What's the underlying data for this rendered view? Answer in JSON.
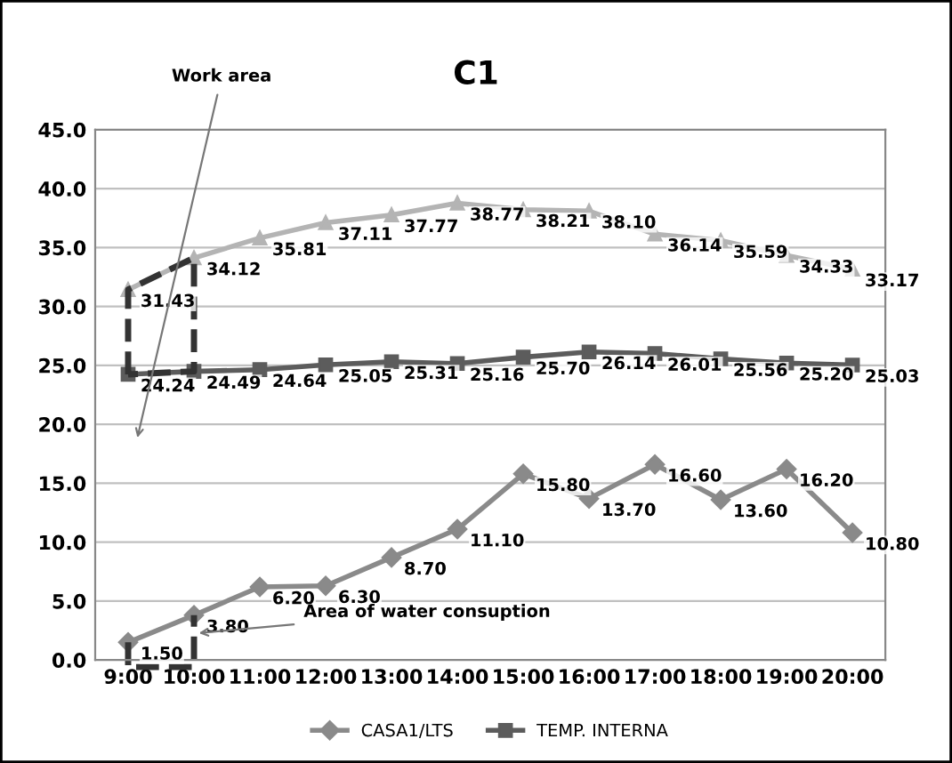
{
  "chart_data": {
    "type": "line",
    "title": "C1",
    "categories": [
      "9:00",
      "10:00",
      "11:00",
      "12:00",
      "13:00",
      "14:00",
      "15:00",
      "16:00",
      "17:00",
      "18:00",
      "19:00",
      "20:00"
    ],
    "series": [
      {
        "color": "#b4b4b4",
        "marker": "triangle",
        "values": [
          31.43,
          34.12,
          35.81,
          37.11,
          37.77,
          38.77,
          38.21,
          38.1,
          36.14,
          35.59,
          34.33,
          33.17
        ],
        "value_labels": [
          "31.43",
          "34.12",
          "35.81",
          "37.11",
          "37.77",
          "38.77",
          "38.21",
          "38.10",
          "36.14",
          "35.59",
          "34.33",
          "33.17"
        ]
      },
      {
        "name": "CASA1/LTS",
        "color": "#8a8a8a",
        "marker": "diamond",
        "values": [
          1.5,
          3.8,
          6.2,
          6.3,
          8.7,
          11.1,
          15.8,
          13.7,
          16.6,
          13.6,
          16.2,
          10.8
        ],
        "value_labels": [
          "1.50",
          "3.80",
          "6.20",
          "6.30",
          "8.70",
          "11.10",
          "15.80",
          "13.70",
          "16.60",
          "13.60",
          "16.20",
          "10.80"
        ]
      },
      {
        "name": "TEMP. INTERNA",
        "color": "#5c5c5c",
        "marker": "square",
        "values": [
          24.24,
          24.49,
          24.64,
          25.05,
          25.31,
          25.16,
          25.7,
          26.14,
          26.01,
          25.56,
          25.2,
          25.03
        ],
        "value_labels": [
          "24.24",
          "24.49",
          "24.64",
          "25.05",
          "25.31",
          "25.16",
          "25.70",
          "26.14",
          "26.01",
          "25.56",
          "25.20",
          "25.03"
        ]
      }
    ],
    "ylim": [
      0,
      45
    ],
    "yticks": [
      {
        "value": 0,
        "label": "0.0"
      },
      {
        "value": 5,
        "label": "5.0"
      },
      {
        "value": 10,
        "label": "10.0"
      },
      {
        "value": 15,
        "label": "15.0"
      },
      {
        "value": 20,
        "label": "20.0"
      },
      {
        "value": 25,
        "label": "25.0"
      },
      {
        "value": 30,
        "label": "30.0"
      },
      {
        "value": 35,
        "label": "35.0"
      },
      {
        "value": 40,
        "label": "40.0"
      },
      {
        "value": 45,
        "label": "45.0"
      }
    ],
    "grid": "y",
    "legend": "bottom",
    "line_style": "solid",
    "annotations": [
      "Work area",
      "Area of water consuption"
    ]
  }
}
